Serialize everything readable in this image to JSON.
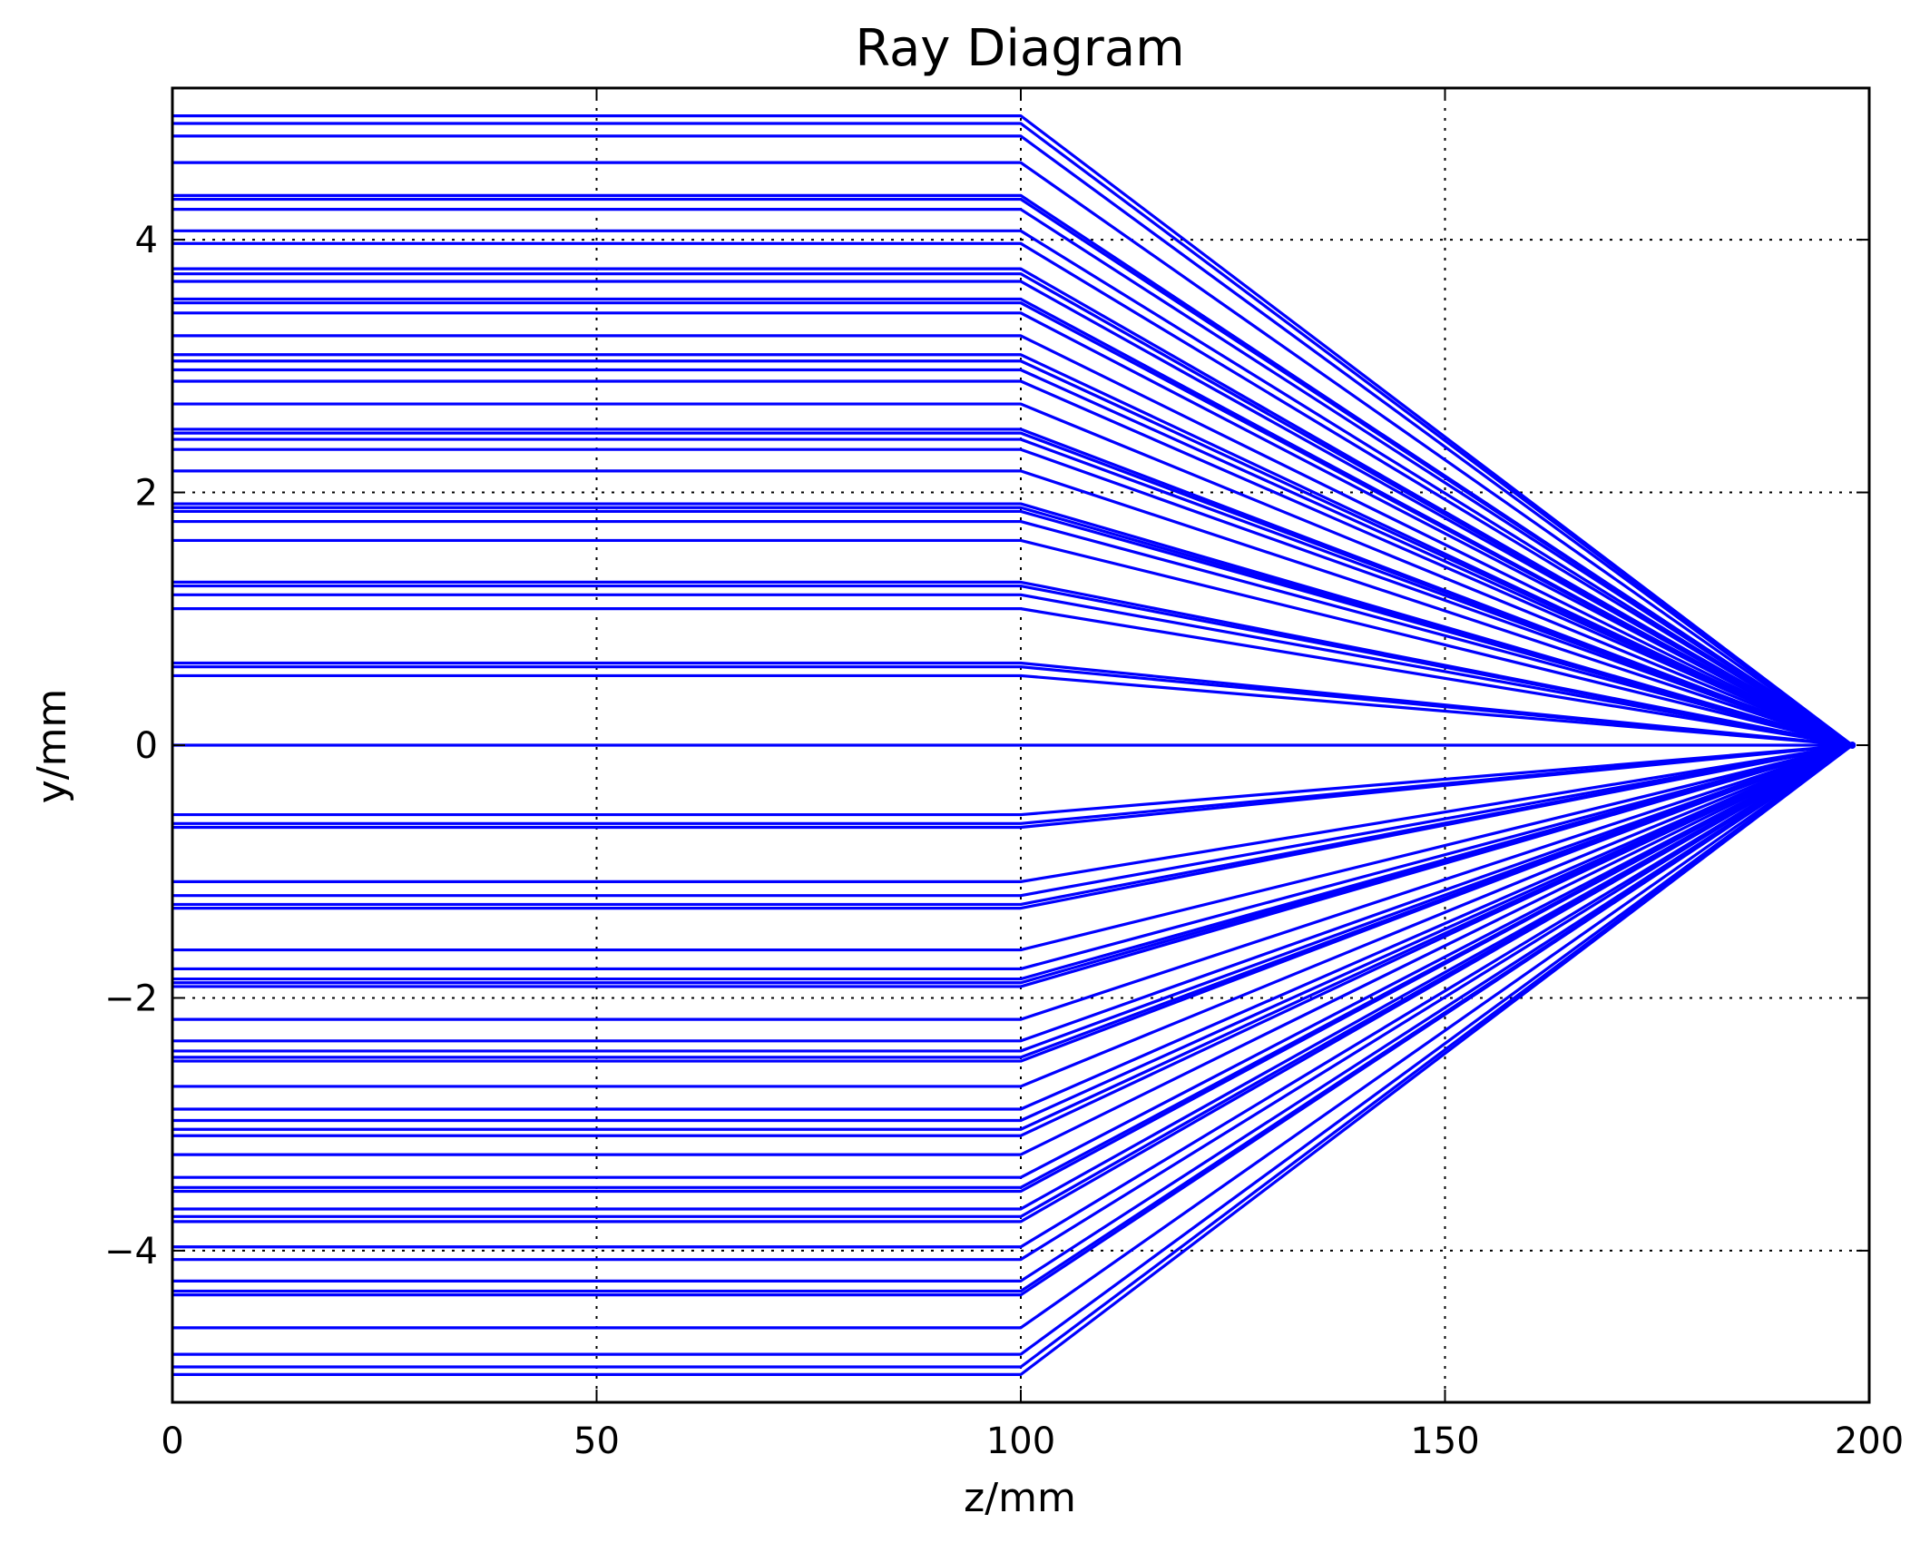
{
  "chart_data": {
    "type": "line",
    "title": "Ray Diagram",
    "xlabel": "z/mm",
    "ylabel": "y/mm",
    "xlim": [
      0,
      200
    ],
    "ylim": [
      -5.2,
      5.2
    ],
    "xticks": [
      0,
      50,
      100,
      150,
      200
    ],
    "yticks": [
      -4,
      -2,
      0,
      2,
      4
    ],
    "xtick_labels": [
      "0",
      "50",
      "100",
      "150",
      "200"
    ],
    "ytick_labels": [
      "−4",
      "−2",
      "0",
      "2",
      "4"
    ],
    "grid": true,
    "ray_color": "#0000ff",
    "lens_z": 100,
    "focus_z": 198,
    "rays": [
      {
        "y": 4.98
      },
      {
        "y": 4.92
      },
      {
        "y": 4.82
      },
      {
        "y": 4.61
      },
      {
        "y": 4.35
      },
      {
        "y": 4.32
      },
      {
        "y": 4.24
      },
      {
        "y": 4.07
      },
      {
        "y": 3.97
      },
      {
        "y": 3.77
      },
      {
        "y": 3.73
      },
      {
        "y": 3.67
      },
      {
        "y": 3.53
      },
      {
        "y": 3.5
      },
      {
        "y": 3.42
      },
      {
        "y": 3.24
      },
      {
        "y": 3.09
      },
      {
        "y": 3.04
      },
      {
        "y": 2.97
      },
      {
        "y": 2.88
      },
      {
        "y": 2.7
      },
      {
        "y": 2.5
      },
      {
        "y": 2.47
      },
      {
        "y": 2.42
      },
      {
        "y": 2.34
      },
      {
        "y": 2.17
      },
      {
        "y": 1.91
      },
      {
        "y": 1.88
      },
      {
        "y": 1.85
      },
      {
        "y": 1.77
      },
      {
        "y": 1.62
      },
      {
        "y": 1.29
      },
      {
        "y": 1.26
      },
      {
        "y": 1.19
      },
      {
        "y": 1.08
      },
      {
        "y": 0.65
      },
      {
        "y": 0.62
      },
      {
        "y": 0.55
      },
      {
        "y": 0.0
      },
      {
        "y": -0.55
      },
      {
        "y": -0.62
      },
      {
        "y": -0.65
      },
      {
        "y": -1.08
      },
      {
        "y": -1.19
      },
      {
        "y": -1.26
      },
      {
        "y": -1.29
      },
      {
        "y": -1.62
      },
      {
        "y": -1.77
      },
      {
        "y": -1.85
      },
      {
        "y": -1.88
      },
      {
        "y": -1.91
      },
      {
        "y": -2.17
      },
      {
        "y": -2.34
      },
      {
        "y": -2.42
      },
      {
        "y": -2.47
      },
      {
        "y": -2.5
      },
      {
        "y": -2.7
      },
      {
        "y": -2.88
      },
      {
        "y": -2.97
      },
      {
        "y": -3.04
      },
      {
        "y": -3.09
      },
      {
        "y": -3.24
      },
      {
        "y": -3.42
      },
      {
        "y": -3.5
      },
      {
        "y": -3.53
      },
      {
        "y": -3.67
      },
      {
        "y": -3.73
      },
      {
        "y": -3.77
      },
      {
        "y": -3.97
      },
      {
        "y": -4.07
      },
      {
        "y": -4.24
      },
      {
        "y": -4.32
      },
      {
        "y": -4.35
      },
      {
        "y": -4.61
      },
      {
        "y": -4.82
      },
      {
        "y": -4.92
      },
      {
        "y": -4.98
      }
    ]
  }
}
